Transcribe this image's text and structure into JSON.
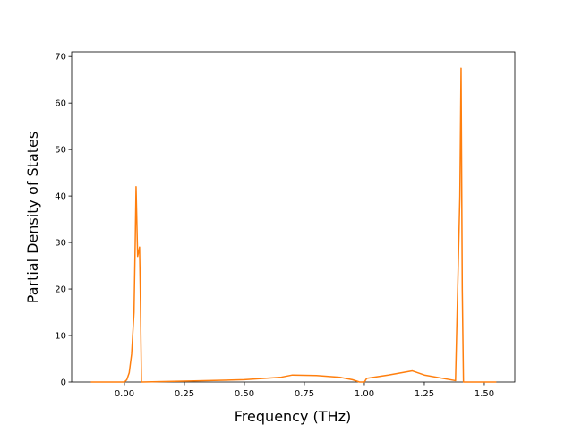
{
  "chart_data": {
    "type": "line",
    "xlabel": "Frequency (THz)",
    "ylabel": "Partial Density of States",
    "x": [
      -0.14,
      0.0,
      0.01,
      0.02,
      0.03,
      0.04,
      0.045,
      0.0485,
      0.055,
      0.063,
      0.066,
      0.071,
      0.25,
      0.5,
      0.65,
      0.7,
      0.8,
      0.9,
      0.95,
      0.98,
      1.0,
      1.01,
      1.1,
      1.2,
      1.25,
      1.38,
      1.398,
      1.403,
      1.408,
      1.413,
      1.55
    ],
    "values": [
      0,
      0,
      0.5,
      2,
      6,
      15,
      30,
      42,
      27,
      29,
      20,
      0,
      0.2,
      0.5,
      1,
      1.5,
      1.4,
      1,
      0.5,
      0,
      0,
      0.8,
      1.5,
      2.4,
      1.5,
      0.3,
      40,
      67.5,
      20,
      0,
      0
    ],
    "color": "#ff7f0e",
    "xlim": [
      -0.22,
      1.627
    ],
    "ylim": [
      0,
      71
    ],
    "xticks": [
      {
        "value": 0,
        "label": "0.00"
      },
      {
        "value": 0.25,
        "label": "0.25"
      },
      {
        "value": 0.5,
        "label": "0.50"
      },
      {
        "value": 0.75,
        "label": "0.75"
      },
      {
        "value": 1,
        "label": "1.00"
      },
      {
        "value": 1.25,
        "label": "1.25"
      },
      {
        "value": 1.5,
        "label": "1.50"
      }
    ],
    "yticks": [
      0,
      10,
      20,
      30,
      40,
      50,
      60,
      70
    ]
  }
}
